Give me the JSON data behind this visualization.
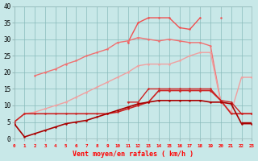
{
  "x": [
    0,
    1,
    2,
    3,
    4,
    5,
    6,
    7,
    8,
    9,
    10,
    11,
    12,
    13,
    14,
    15,
    16,
    17,
    18,
    19,
    20,
    21,
    22,
    23
  ],
  "line_vdark_rising": [
    4.5,
    0.5,
    1.5,
    2.5,
    3.5,
    4.5,
    5.0,
    5.5,
    6.5,
    7.5,
    8.5,
    9.5,
    10.5,
    11.0,
    11.5,
    11.5,
    11.5,
    11.5,
    11.5,
    11.0,
    11.0,
    10.5,
    4.5,
    4.5
  ],
  "line_dark_flat": [
    null,
    null,
    null,
    null,
    null,
    null,
    null,
    null,
    null,
    null,
    null,
    null,
    null,
    null,
    null,
    null,
    null,
    null,
    null,
    null,
    null,
    null,
    5.0,
    5.0
  ],
  "line_red_p50": [
    5.0,
    7.5,
    7.5,
    7.5,
    7.5,
    7.5,
    7.5,
    7.5,
    7.5,
    7.5,
    8.0,
    9.0,
    10.0,
    11.0,
    14.5,
    14.5,
    14.5,
    14.5,
    14.5,
    14.5,
    11.5,
    7.5,
    7.5,
    7.5
  ],
  "line_red_p75": [
    null,
    null,
    null,
    null,
    null,
    null,
    null,
    null,
    null,
    null,
    null,
    11.0,
    11.0,
    15.0,
    15.0,
    15.0,
    15.0,
    15.0,
    15.0,
    15.0,
    11.5,
    11.0,
    7.5,
    7.5
  ],
  "line_lpink_low": [
    null,
    7.5,
    8.0,
    9.0,
    10.0,
    11.0,
    12.5,
    14.0,
    15.5,
    17.0,
    18.5,
    20.0,
    22.0,
    22.5,
    22.5,
    22.5,
    23.5,
    25.0,
    26.0,
    26.0,
    11.0,
    8.0,
    18.5,
    18.5
  ],
  "line_lpink_mid": [
    null,
    null,
    19.0,
    20.0,
    21.0,
    22.5,
    23.5,
    25.0,
    26.0,
    27.0,
    29.0,
    29.5,
    30.5,
    30.0,
    29.5,
    30.0,
    29.5,
    29.0,
    29.0,
    28.0,
    11.0,
    null,
    null,
    null
  ],
  "line_lpink_top": [
    null,
    null,
    null,
    null,
    null,
    null,
    null,
    null,
    null,
    null,
    null,
    29.0,
    35.0,
    36.5,
    36.5,
    36.5,
    33.5,
    33.0,
    36.5,
    null,
    36.5,
    null,
    null,
    null
  ],
  "bg_color": "#c8e8e8",
  "xlabel": "Vent moyen/en rafales ( km/h )",
  "ylim": [
    0,
    40
  ],
  "xlim": [
    0,
    23
  ],
  "yticks": [
    0,
    5,
    10,
    15,
    20,
    25,
    30,
    35,
    40
  ],
  "color_vdark": "#aa0000",
  "color_dark": "#cc2222",
  "color_lpink_low": "#f0a0a0",
  "color_lpink_mid": "#f07070",
  "color_lpink_top": "#f05050"
}
